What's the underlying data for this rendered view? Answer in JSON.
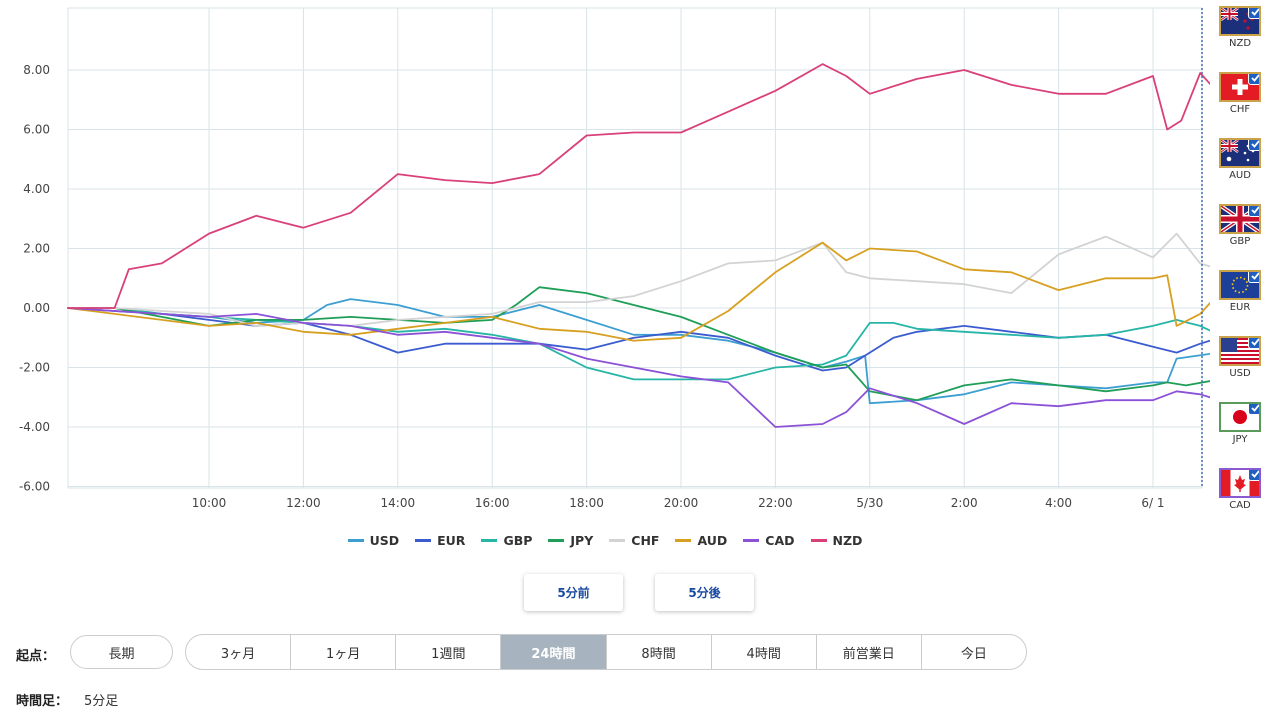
{
  "chart_data": {
    "type": "line",
    "yticks": [
      "8.00",
      "6.00",
      "4.00",
      "2.00",
      "0.00",
      "-2.00",
      "-4.00",
      "-6.00"
    ],
    "ytick_values": [
      8,
      6,
      4,
      2,
      0,
      -2,
      -4,
      -6
    ],
    "ylim": [
      -6,
      10
    ],
    "xticks": [
      "10:00",
      "12:00",
      "14:00",
      "16:00",
      "18:00",
      "20:00",
      "22:00",
      "5/30",
      "2:00",
      "4:00",
      "6/ 1"
    ],
    "xlim_hours": [
      7,
      31.4
    ],
    "xtick_hours": [
      10,
      12,
      14,
      16,
      18,
      20,
      22,
      24,
      26,
      28,
      30
    ],
    "grid": true,
    "series": [
      {
        "name": "USD",
        "color": "#3d9fd1",
        "points": [
          [
            7,
            0
          ],
          [
            8,
            0
          ],
          [
            9,
            -0.2
          ],
          [
            10,
            -0.3
          ],
          [
            11,
            -0.5
          ],
          [
            12,
            -0.4
          ],
          [
            12.5,
            0.1
          ],
          [
            13,
            0.3
          ],
          [
            14,
            0.1
          ],
          [
            15,
            -0.3
          ],
          [
            16,
            -0.3
          ],
          [
            17,
            0.1
          ],
          [
            18,
            -0.4
          ],
          [
            19,
            -0.9
          ],
          [
            20,
            -0.9
          ],
          [
            21,
            -1.1
          ],
          [
            22,
            -1.5
          ],
          [
            23,
            -2.0
          ],
          [
            23.5,
            -1.8
          ],
          [
            23.9,
            -1.6
          ],
          [
            24,
            -3.2
          ],
          [
            25,
            -3.1
          ],
          [
            26,
            -2.9
          ],
          [
            27,
            -2.5
          ],
          [
            28,
            -2.6
          ],
          [
            29,
            -2.7
          ],
          [
            30,
            -2.5
          ],
          [
            30.3,
            -2.5
          ],
          [
            30.5,
            -1.7
          ],
          [
            31.4,
            -1.5
          ]
        ]
      },
      {
        "name": "EUR",
        "color": "#3b5ccf",
        "points": [
          [
            7,
            0
          ],
          [
            8,
            -0.1
          ],
          [
            9,
            -0.2
          ],
          [
            10,
            -0.4
          ],
          [
            11,
            -0.6
          ],
          [
            12,
            -0.5
          ],
          [
            13,
            -0.9
          ],
          [
            14,
            -1.5
          ],
          [
            15,
            -1.2
          ],
          [
            16,
            -1.2
          ],
          [
            17,
            -1.2
          ],
          [
            18,
            -1.4
          ],
          [
            19,
            -1.0
          ],
          [
            20,
            -0.8
          ],
          [
            21,
            -1.0
          ],
          [
            22,
            -1.6
          ],
          [
            23,
            -2.1
          ],
          [
            23.5,
            -2.0
          ],
          [
            24,
            -1.5
          ],
          [
            24.5,
            -1.0
          ],
          [
            25,
            -0.8
          ],
          [
            26,
            -0.6
          ],
          [
            27,
            -0.8
          ],
          [
            28,
            -1.0
          ],
          [
            29,
            -0.9
          ],
          [
            30,
            -1.3
          ],
          [
            30.5,
            -1.5
          ],
          [
            31,
            -1.2
          ],
          [
            31.4,
            -1.0
          ]
        ]
      },
      {
        "name": "GBP",
        "color": "#26b5a6",
        "points": [
          [
            7,
            0
          ],
          [
            8,
            0
          ],
          [
            9,
            -0.2
          ],
          [
            10,
            -0.3
          ],
          [
            11,
            -0.4
          ],
          [
            12,
            -0.5
          ],
          [
            13,
            -0.6
          ],
          [
            14,
            -0.8
          ],
          [
            15,
            -0.7
          ],
          [
            16,
            -0.9
          ],
          [
            17,
            -1.2
          ],
          [
            18,
            -2.0
          ],
          [
            19,
            -2.4
          ],
          [
            20,
            -2.4
          ],
          [
            21,
            -2.4
          ],
          [
            22,
            -2.0
          ],
          [
            23,
            -1.9
          ],
          [
            23.5,
            -1.6
          ],
          [
            24,
            -0.5
          ],
          [
            24.5,
            -0.5
          ],
          [
            25,
            -0.7
          ],
          [
            26,
            -0.8
          ],
          [
            27,
            -0.9
          ],
          [
            28,
            -1.0
          ],
          [
            29,
            -0.9
          ],
          [
            30,
            -0.6
          ],
          [
            30.5,
            -0.4
          ],
          [
            31,
            -0.6
          ],
          [
            31.4,
            -0.9
          ]
        ]
      },
      {
        "name": "JPY",
        "color": "#1f9e57",
        "points": [
          [
            7,
            0
          ],
          [
            8,
            0
          ],
          [
            9,
            -0.3
          ],
          [
            10,
            -0.6
          ],
          [
            11,
            -0.4
          ],
          [
            12,
            -0.4
          ],
          [
            13,
            -0.3
          ],
          [
            14,
            -0.4
          ],
          [
            15,
            -0.5
          ],
          [
            16,
            -0.4
          ],
          [
            16.5,
            0.1
          ],
          [
            17,
            0.7
          ],
          [
            18,
            0.5
          ],
          [
            19,
            0.1
          ],
          [
            20,
            -0.3
          ],
          [
            21,
            -0.9
          ],
          [
            22,
            -1.5
          ],
          [
            23,
            -2.0
          ],
          [
            23.5,
            -1.9
          ],
          [
            24,
            -2.8
          ],
          [
            25,
            -3.1
          ],
          [
            26,
            -2.6
          ],
          [
            27,
            -2.4
          ],
          [
            28,
            -2.6
          ],
          [
            29,
            -2.8
          ],
          [
            30,
            -2.6
          ],
          [
            30.3,
            -2.5
          ],
          [
            30.7,
            -2.6
          ],
          [
            31.4,
            -2.4
          ]
        ]
      },
      {
        "name": "CHF",
        "color": "#d3d3d3",
        "points": [
          [
            7,
            0
          ],
          [
            8,
            0
          ],
          [
            9,
            -0.1
          ],
          [
            10,
            -0.2
          ],
          [
            11,
            -0.6
          ],
          [
            12,
            -0.5
          ],
          [
            13,
            -0.6
          ],
          [
            14,
            -0.4
          ],
          [
            15,
            -0.3
          ],
          [
            16,
            -0.2
          ],
          [
            17,
            0.2
          ],
          [
            18,
            0.2
          ],
          [
            19,
            0.4
          ],
          [
            20,
            0.9
          ],
          [
            21,
            1.5
          ],
          [
            22,
            1.6
          ],
          [
            23,
            2.2
          ],
          [
            23.5,
            1.2
          ],
          [
            24,
            1.0
          ],
          [
            25,
            0.9
          ],
          [
            26,
            0.8
          ],
          [
            27,
            0.5
          ],
          [
            28,
            1.8
          ],
          [
            29,
            2.4
          ],
          [
            30,
            1.7
          ],
          [
            30.5,
            2.5
          ],
          [
            31,
            1.5
          ],
          [
            31.4,
            1.3
          ]
        ]
      },
      {
        "name": "AUD",
        "color": "#d7a021",
        "points": [
          [
            7,
            0
          ],
          [
            8,
            -0.2
          ],
          [
            9,
            -0.4
          ],
          [
            10,
            -0.6
          ],
          [
            11,
            -0.5
          ],
          [
            12,
            -0.8
          ],
          [
            13,
            -0.9
          ],
          [
            14,
            -0.7
          ],
          [
            15,
            -0.5
          ],
          [
            16,
            -0.3
          ],
          [
            17,
            -0.7
          ],
          [
            18,
            -0.8
          ],
          [
            19,
            -1.1
          ],
          [
            20,
            -1.0
          ],
          [
            21,
            -0.1
          ],
          [
            22,
            1.2
          ],
          [
            23,
            2.2
          ],
          [
            23.5,
            1.6
          ],
          [
            24,
            2.0
          ],
          [
            25,
            1.9
          ],
          [
            26,
            1.3
          ],
          [
            27,
            1.2
          ],
          [
            28,
            0.6
          ],
          [
            29,
            1.0
          ],
          [
            30,
            1.0
          ],
          [
            30.3,
            1.1
          ],
          [
            30.5,
            -0.6
          ],
          [
            31,
            -0.2
          ],
          [
            31.4,
            0.5
          ]
        ]
      },
      {
        "name": "CAD",
        "color": "#8b51d6",
        "points": [
          [
            7,
            0
          ],
          [
            8,
            -0.1
          ],
          [
            9,
            -0.2
          ],
          [
            10,
            -0.3
          ],
          [
            11,
            -0.2
          ],
          [
            12,
            -0.5
          ],
          [
            13,
            -0.6
          ],
          [
            14,
            -0.9
          ],
          [
            15,
            -0.8
          ],
          [
            16,
            -1.0
          ],
          [
            17,
            -1.2
          ],
          [
            18,
            -1.7
          ],
          [
            19,
            -2.0
          ],
          [
            20,
            -2.3
          ],
          [
            21,
            -2.5
          ],
          [
            22,
            -4.0
          ],
          [
            23,
            -3.9
          ],
          [
            23.5,
            -3.5
          ],
          [
            24,
            -2.7
          ],
          [
            25,
            -3.2
          ],
          [
            26,
            -3.9
          ],
          [
            27,
            -3.2
          ],
          [
            28,
            -3.3
          ],
          [
            29,
            -3.1
          ],
          [
            30,
            -3.1
          ],
          [
            30.5,
            -2.8
          ],
          [
            31,
            -2.9
          ],
          [
            31.4,
            -3.1
          ]
        ]
      },
      {
        "name": "NZD",
        "color": "#d9407a",
        "points": [
          [
            7,
            0
          ],
          [
            8,
            0
          ],
          [
            8.3,
            1.3
          ],
          [
            9,
            1.5
          ],
          [
            10,
            2.5
          ],
          [
            11,
            3.1
          ],
          [
            12,
            2.7
          ],
          [
            13,
            3.2
          ],
          [
            14,
            4.5
          ],
          [
            15,
            4.3
          ],
          [
            16,
            4.2
          ],
          [
            17,
            4.5
          ],
          [
            18,
            5.8
          ],
          [
            19,
            5.9
          ],
          [
            20,
            5.9
          ],
          [
            21,
            6.6
          ],
          [
            22,
            7.3
          ],
          [
            23,
            8.2
          ],
          [
            23.5,
            7.8
          ],
          [
            24,
            7.2
          ],
          [
            25,
            7.7
          ],
          [
            26,
            8.0
          ],
          [
            27,
            7.5
          ],
          [
            28,
            7.2
          ],
          [
            29,
            7.2
          ],
          [
            30,
            7.8
          ],
          [
            30.3,
            6.0
          ],
          [
            30.6,
            6.3
          ],
          [
            31,
            7.9
          ],
          [
            31.4,
            7.2
          ]
        ]
      }
    ]
  },
  "legend": {
    "items": [
      "USD",
      "EUR",
      "GBP",
      "JPY",
      "CHF",
      "AUD",
      "CAD",
      "NZD"
    ]
  },
  "flags": [
    "NZD",
    "CHF",
    "AUD",
    "GBP",
    "EUR",
    "USD",
    "JPY",
    "CAD"
  ],
  "nav": {
    "prev": "5分前",
    "next": "5分後"
  },
  "start": {
    "label": "起点：",
    "long": "長期",
    "ranges": [
      "3ヶ月",
      "1ヶ月",
      "1週間",
      "24時間",
      "8時間",
      "4時間",
      "前営業日",
      "今日"
    ],
    "active": "24時間"
  },
  "timeframe": {
    "label": "時間足：",
    "value": "5分足"
  },
  "colors": {
    "accent": "#1a4aa0",
    "active_bg": "#a7b4bf"
  }
}
